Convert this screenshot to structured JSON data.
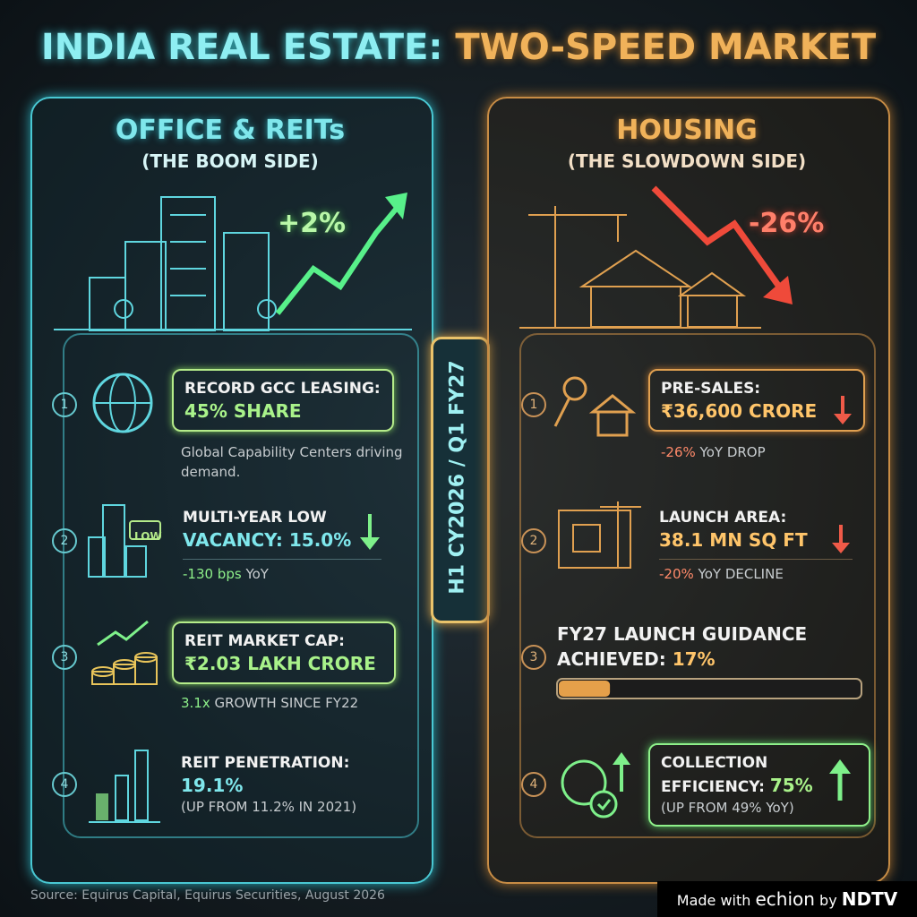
{
  "header": {
    "title_left": "INDIA REAL ESTATE:",
    "title_right": "TWO-SPEED MARKET"
  },
  "center_label": "H1 CY2026 / Q1 FY27",
  "left_panel": {
    "title": "OFFICE & REITs",
    "subtitle": "(THE BOOM SIDE)",
    "change": "+2%",
    "items": [
      {
        "number": "1",
        "title": "RECORD GCC LEASING:",
        "highlight": "45% SHARE",
        "note": "Global Capability Centers driving demand."
      },
      {
        "number": "2",
        "icon_label": "LOW",
        "title": "MULTI-YEAR LOW",
        "highlight": "VACANCY: 15.0%",
        "note_value": "-130 bps",
        "note_rest": "YoY"
      },
      {
        "number": "3",
        "title": "REIT MARKET CAP:",
        "highlight": "₹2.03 LAKH CRORE",
        "note_value": "3.1x",
        "note_rest": "GROWTH SINCE FY22"
      },
      {
        "number": "4",
        "title": "REIT PENETRATION:",
        "highlight": "19.1%",
        "note": "(UP FROM 11.2% IN 2021)"
      }
    ]
  },
  "right_panel": {
    "title": "HOUSING",
    "subtitle": "(THE SLOWDOWN SIDE)",
    "change": "-26%",
    "items": [
      {
        "number": "1",
        "title": "PRE-SALES:",
        "highlight": "₹36,600 CRORE",
        "note_value": "-26%",
        "note_rest": "YoY DROP"
      },
      {
        "number": "2",
        "title": "LAUNCH AREA:",
        "highlight": "38.1 MN SQ FT",
        "note_value": "-20%",
        "note_rest": "YoY DECLINE"
      },
      {
        "number": "3",
        "title": "FY27 LAUNCH GUIDANCE",
        "label": "ACHIEVED:",
        "progress": {
          "value": 17,
          "label": "17%"
        }
      },
      {
        "number": "4",
        "title": "COLLECTION",
        "label": "EFFICIENCY:",
        "highlight": "75%",
        "note": "(UP FROM 49% YoY)"
      }
    ]
  },
  "footer": {
    "source": "Source: Equirus Capital, Equirus Securities, August 2026",
    "made_with": "Made with",
    "brand": "echion",
    "by": "by",
    "partner": "NDTV"
  }
}
